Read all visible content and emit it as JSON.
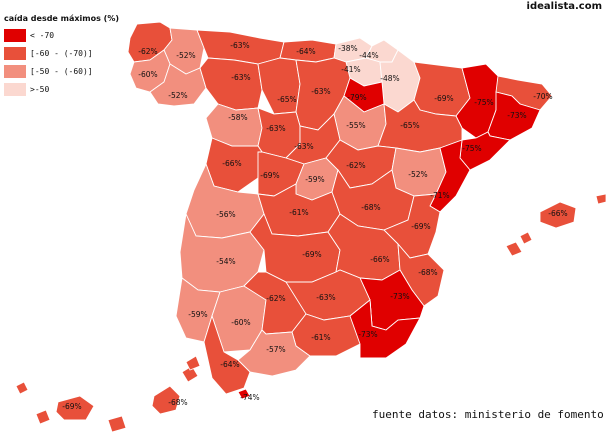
{
  "brand": "idealista.com",
  "source_note": "fuente datos: ministerio de fomento",
  "legend": {
    "title": "caída desde máximos (%)",
    "items": [
      {
        "label": "< -70",
        "color": "#e00000"
      },
      {
        "label": "[-60 - (-70)]",
        "color": "#e8503a"
      },
      {
        "label": "[-50 - (-60)]",
        "color": "#f28f7e"
      },
      {
        "label": ">-50",
        "color": "#fbd8d0"
      }
    ]
  },
  "provinces": [
    {
      "id": "a-coruna",
      "value": "-62%",
      "color": "#e8503a"
    },
    {
      "id": "lugo",
      "value": "-52%",
      "color": "#f28f7e"
    },
    {
      "id": "pontevedra",
      "value": "-60%",
      "color": "#f28f7e"
    },
    {
      "id": "ourense",
      "value": "-52%",
      "color": "#f28f7e"
    },
    {
      "id": "asturias",
      "value": "-63%",
      "color": "#e8503a"
    },
    {
      "id": "cantabria",
      "value": "-64%",
      "color": "#e8503a"
    },
    {
      "id": "bizkaia",
      "value": "-38%",
      "color": "#fbd8d0"
    },
    {
      "id": "gipuzkoa",
      "value": "-44%",
      "color": "#fbd8d0"
    },
    {
      "id": "alava",
      "value": "-41%",
      "color": "#fbd8d0"
    },
    {
      "id": "navarra",
      "value": "-48%",
      "color": "#fbd8d0"
    },
    {
      "id": "leon",
      "value": "-63%",
      "color": "#e8503a"
    },
    {
      "id": "palencia",
      "value": "-65%",
      "color": "#e8503a"
    },
    {
      "id": "burgos",
      "value": "-63%",
      "color": "#e8503a"
    },
    {
      "id": "la-rioja",
      "value": "-79%",
      "color": "#e00000"
    },
    {
      "id": "huesca",
      "value": "-69%",
      "color": "#e8503a"
    },
    {
      "id": "lleida",
      "value": "-75%",
      "color": "#e00000"
    },
    {
      "id": "girona",
      "value": "-70%",
      "color": "#e8503a"
    },
    {
      "id": "barcelona",
      "value": "-73%",
      "color": "#e00000"
    },
    {
      "id": "tarragona",
      "value": "-75%",
      "color": "#e00000"
    },
    {
      "id": "zamora",
      "value": "-58%",
      "color": "#f28f7e"
    },
    {
      "id": "valladolid",
      "value": "-63%",
      "color": "#e8503a"
    },
    {
      "id": "soria",
      "value": "-55%",
      "color": "#f28f7e"
    },
    {
      "id": "zaragoza",
      "value": "-65%",
      "color": "#e8503a"
    },
    {
      "id": "segovia",
      "value": "-63%",
      "color": "#e8503a"
    },
    {
      "id": "salamanca",
      "value": "-66%",
      "color": "#e8503a"
    },
    {
      "id": "avila",
      "value": "-69%",
      "color": "#e8503a"
    },
    {
      "id": "madrid",
      "value": "-59%",
      "color": "#f28f7e"
    },
    {
      "id": "guadalajara",
      "value": "-62%",
      "color": "#e8503a"
    },
    {
      "id": "teruel",
      "value": "-52%",
      "color": "#f28f7e"
    },
    {
      "id": "castellon",
      "value": "-71%",
      "color": "#e00000"
    },
    {
      "id": "caceres",
      "value": "-56%",
      "color": "#f28f7e"
    },
    {
      "id": "toledo",
      "value": "-61%",
      "color": "#e8503a"
    },
    {
      "id": "cuenca",
      "value": "-68%",
      "color": "#e8503a"
    },
    {
      "id": "valencia",
      "value": "-69%",
      "color": "#e8503a"
    },
    {
      "id": "badajoz",
      "value": "-54%",
      "color": "#f28f7e"
    },
    {
      "id": "ciudad-real",
      "value": "-69%",
      "color": "#e8503a"
    },
    {
      "id": "albacete",
      "value": "-66%",
      "color": "#e8503a"
    },
    {
      "id": "alicante",
      "value": "-68%",
      "color": "#e8503a"
    },
    {
      "id": "murcia",
      "value": "-73%",
      "color": "#e00000"
    },
    {
      "id": "huelva",
      "value": "-59%",
      "color": "#f28f7e"
    },
    {
      "id": "sevilla",
      "value": "-60%",
      "color": "#f28f7e"
    },
    {
      "id": "cordoba",
      "value": "-62%",
      "color": "#e8503a"
    },
    {
      "id": "jaen",
      "value": "-63%",
      "color": "#e8503a"
    },
    {
      "id": "granada",
      "value": "-61%",
      "color": "#e8503a"
    },
    {
      "id": "almeria",
      "value": "-73%",
      "color": "#e00000"
    },
    {
      "id": "malaga",
      "value": "-57%",
      "color": "#f28f7e"
    },
    {
      "id": "cadiz",
      "value": "-64%",
      "color": "#e8503a"
    },
    {
      "id": "ceuta",
      "value": "-74%",
      "color": "#e00000"
    },
    {
      "id": "illes-balears",
      "value": "-66%",
      "color": "#e8503a"
    },
    {
      "id": "santa-cruz-de-tenerife",
      "value": "-69%",
      "color": "#e8503a"
    },
    {
      "id": "las-palmas",
      "value": "-68%",
      "color": "#e8503a"
    }
  ]
}
